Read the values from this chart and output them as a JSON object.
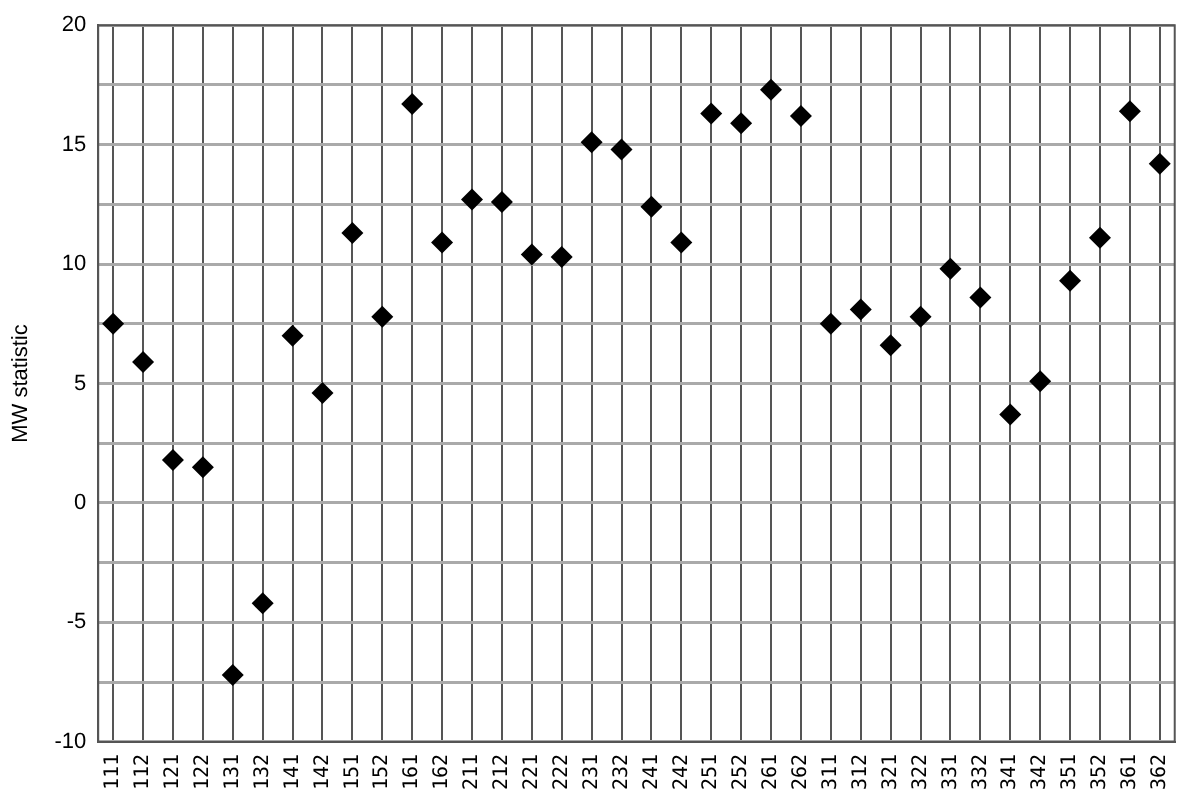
{
  "chart_data": {
    "type": "scatter",
    "ylabel": "MW statistic",
    "categories": [
      "111",
      "112",
      "121",
      "122",
      "131",
      "132",
      "141",
      "142",
      "151",
      "152",
      "161",
      "162",
      "211",
      "212",
      "221",
      "222",
      "231",
      "232",
      "241",
      "242",
      "251",
      "252",
      "261",
      "262",
      "311",
      "312",
      "321",
      "322",
      "331",
      "332",
      "341",
      "342",
      "351",
      "352",
      "361",
      "362"
    ],
    "series": [
      {
        "color": "#000000",
        "values": [
          7.5,
          5.9,
          1.8,
          1.5,
          -7.2,
          -4.2,
          7.0,
          4.6,
          11.3,
          7.8,
          16.7,
          10.9,
          12.7,
          12.6,
          10.4,
          10.3,
          15.1,
          14.8,
          12.4,
          10.9,
          16.3,
          15.9,
          17.3,
          16.2,
          7.5,
          8.1,
          6.6,
          7.8,
          9.8,
          8.6,
          3.7,
          5.1,
          9.3,
          11.1,
          16.4,
          14.2
        ]
      }
    ],
    "ylim": [
      -10,
      20
    ],
    "yticks": [
      -10,
      {
        "value": -7.5,
        "label": null
      },
      -5,
      {
        "value": -2.5,
        "label": null
      },
      0,
      {
        "value": 2.5,
        "label": null
      },
      5,
      {
        "value": 7.5,
        "label": null
      },
      10,
      {
        "value": 12.5,
        "label": null
      },
      15,
      {
        "value": 17.5,
        "label": null
      },
      20
    ],
    "grid": true,
    "legend": false,
    "marker": "diamond"
  }
}
